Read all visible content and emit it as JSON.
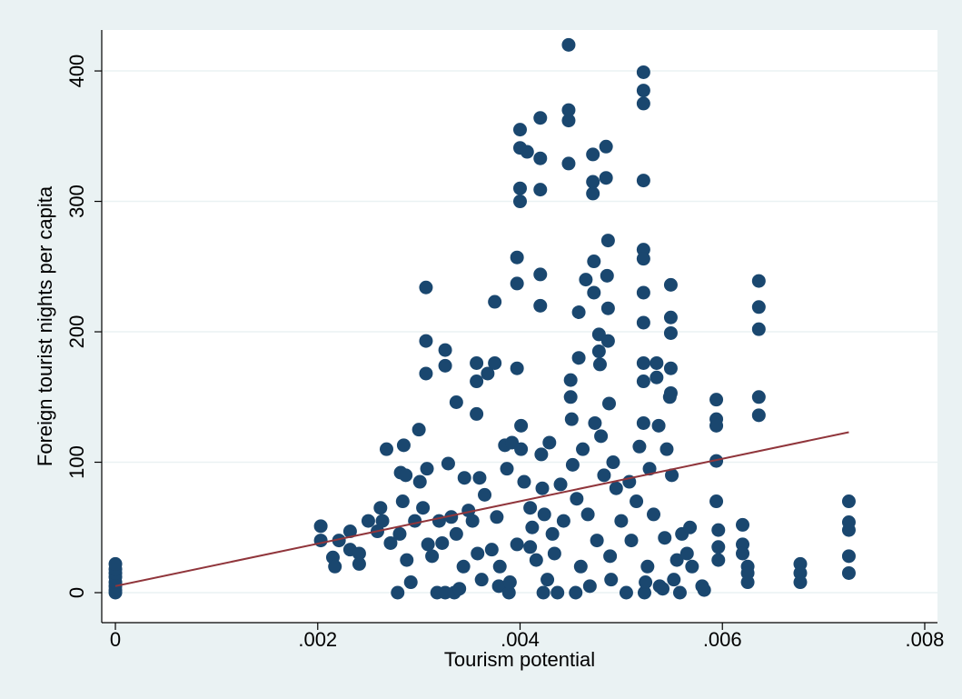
{
  "chart_data": {
    "type": "scatter",
    "x_label": "Tourism potential",
    "y_label": "Foreign tourist nights per capita",
    "xlim": [
      -0.000135,
      0.008126
    ],
    "ylim": [
      -23,
      431.4
    ],
    "xticks": [
      0,
      {
        "value": 0.002,
        "label": ".002"
      },
      {
        "value": 0.004,
        "label": ".004"
      },
      {
        "value": 0.006,
        "label": ".006"
      },
      {
        "value": 0.008,
        "label": ".008"
      }
    ],
    "yticks": [
      0,
      100,
      200,
      300,
      400
    ],
    "grid": true,
    "series": [
      {
        "color": "#1a476f",
        "x": [
          0,
          0,
          0,
          0,
          0,
          0,
          0,
          0,
          0.00203,
          0.00203,
          0.00215,
          0.00217,
          0.00221,
          0.00232,
          0.00232,
          0.00241,
          0.00241,
          0.0025,
          0.00259,
          0.00262,
          0.00264,
          0.00268,
          0.00272,
          0.00279,
          0.00281,
          0.00282,
          0.00284,
          0.00285,
          0.00287,
          0.00288,
          0.00292,
          0.00296,
          0.003,
          0.00301,
          0.00304,
          0.00307,
          0.00307,
          0.00307,
          0.00308,
          0.00309,
          0.00313,
          0.00318,
          0.0032,
          0.00323,
          0.00326,
          0.00326,
          0.00326,
          0.00329,
          0.00332,
          0.00335,
          0.00337,
          0.00337,
          0.0034,
          0.00344,
          0.00345,
          0.00349,
          0.00353,
          0.00357,
          0.00357,
          0.00357,
          0.00358,
          0.0036,
          0.00362,
          0.00365,
          0.00368,
          0.00372,
          0.00375,
          0.00375,
          0.00377,
          0.00379,
          0.0038,
          0.00385,
          0.00387,
          0.00389,
          0.0039,
          0.00392,
          0.00397,
          0.00397,
          0.00397,
          0.00397,
          0.004,
          0.004,
          0.004,
          0.004,
          0.00401,
          0.00401,
          0.00404,
          0.00407,
          0.0041,
          0.0041,
          0.00412,
          0.00416,
          0.0042,
          0.0042,
          0.0042,
          0.0042,
          0.0042,
          0.00421,
          0.00422,
          0.00423,
          0.00424,
          0.00427,
          0.00429,
          0.00432,
          0.00434,
          0.00437,
          0.0044,
          0.00443,
          0.00448,
          0.00448,
          0.00448,
          0.00448,
          0.0045,
          0.0045,
          0.00451,
          0.00452,
          0.00455,
          0.00456,
          0.00458,
          0.00458,
          0.0046,
          0.00462,
          0.00465,
          0.00467,
          0.00469,
          0.00472,
          0.00472,
          0.00472,
          0.00473,
          0.00473,
          0.00474,
          0.00476,
          0.00478,
          0.00478,
          0.00479,
          0.0048,
          0.00483,
          0.00485,
          0.00485,
          0.00486,
          0.00487,
          0.00487,
          0.00487,
          0.00488,
          0.00489,
          0.0049,
          0.00492,
          0.00495,
          0.005,
          0.00505,
          0.00508,
          0.0051,
          0.00515,
          0.00518,
          0.00522,
          0.00522,
          0.00522,
          0.00522,
          0.00522,
          0.00522,
          0.00522,
          0.00522,
          0.00522,
          0.00522,
          0.00522,
          0.00523,
          0.00524,
          0.00526,
          0.00528,
          0.00532,
          0.00535,
          0.00535,
          0.00537,
          0.00538,
          0.00541,
          0.00543,
          0.00545,
          0.00548,
          0.00549,
          0.00549,
          0.00549,
          0.00549,
          0.00549,
          0.0055,
          0.00552,
          0.00555,
          0.00558,
          0.0056,
          0.00565,
          0.00568,
          0.0057,
          0.0058,
          0.00582,
          0.00594,
          0.00594,
          0.00594,
          0.00594,
          0.00594,
          0.00596,
          0.00596,
          0.00596,
          0.0062,
          0.0062,
          0.0062,
          0.00625,
          0.00625,
          0.00625,
          0.00636,
          0.00636,
          0.00636,
          0.00636,
          0.00636,
          0.00677,
          0.00677,
          0.00677,
          0.00725,
          0.00725,
          0.00725,
          0.00725,
          0.00725
        ],
        "values": [
          0,
          2,
          5,
          8,
          12,
          15,
          18,
          22,
          51,
          40,
          27,
          20,
          40,
          47,
          33,
          30,
          22,
          55,
          47,
          65,
          55,
          110,
          38,
          0,
          45,
          92,
          70,
          113,
          90,
          25,
          8,
          55,
          125,
          85,
          65,
          234,
          193,
          168,
          95,
          37,
          28,
          0,
          55,
          38,
          0,
          186,
          174,
          99,
          58,
          0,
          45,
          146,
          3,
          20,
          88,
          63,
          55,
          176,
          162,
          137,
          30,
          88,
          10,
          75,
          168,
          33,
          223,
          176,
          58,
          5,
          20,
          113,
          95,
          0,
          8,
          115,
          172,
          237,
          257,
          37,
          355,
          341,
          310,
          300,
          110,
          128,
          85,
          338,
          65,
          35,
          50,
          25,
          364,
          333,
          309,
          244,
          220,
          106,
          80,
          0,
          60,
          10,
          115,
          45,
          30,
          0,
          83,
          55,
          420,
          370,
          362,
          329,
          163,
          150,
          133,
          98,
          0,
          72,
          215,
          180,
          20,
          110,
          240,
          60,
          5,
          336,
          315,
          306,
          254,
          230,
          130,
          40,
          198,
          185,
          175,
          120,
          90,
          342,
          318,
          243,
          270,
          218,
          193,
          145,
          28,
          10,
          100,
          80,
          55,
          0,
          85,
          40,
          70,
          112,
          399,
          385,
          375,
          316,
          263,
          256,
          230,
          207,
          176,
          162,
          130,
          0,
          8,
          20,
          95,
          60,
          176,
          165,
          128,
          5,
          3,
          42,
          110,
          150,
          236,
          211,
          199,
          172,
          153,
          90,
          10,
          25,
          0,
          45,
          30,
          50,
          20,
          5,
          2,
          148,
          133,
          128,
          101,
          70,
          48,
          35,
          25,
          52,
          37,
          30,
          20,
          15,
          8,
          239,
          219,
          202,
          150,
          136,
          22,
          15,
          8,
          70,
          54,
          48,
          28,
          15
        ]
      }
    ],
    "fit_line": {
      "color": "#90353b",
      "x": [
        0,
        0.00725
      ],
      "values": [
        5,
        123
      ]
    }
  }
}
